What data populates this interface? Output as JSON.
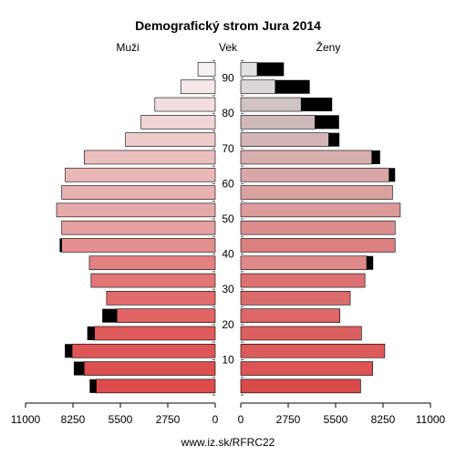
{
  "chart_data": {
    "type": "bar",
    "title": "Demografický strom Jura 2014",
    "left_label": "Muži",
    "center_label": "Vek",
    "right_label": "Ženy",
    "source": "www.iz.sk/RFRC22",
    "age_groups": [
      "0-4",
      "5-9",
      "10-14",
      "15-19",
      "20-24",
      "25-29",
      "30-34",
      "35-39",
      "40-44",
      "45-49",
      "50-54",
      "55-59",
      "60-64",
      "65-69",
      "70-74",
      "75-79",
      "80-84",
      "85-89",
      "90+"
    ],
    "age_tick_labels": [
      "10",
      "20",
      "30",
      "40",
      "50",
      "60",
      "70",
      "80",
      "90"
    ],
    "x_tick_labels": [
      "11000",
      "8250",
      "5500",
      "2750",
      "0",
      "2750",
      "5500",
      "8250",
      "11000"
    ],
    "xlim": [
      0,
      11000
    ],
    "series": [
      {
        "name": "Muži",
        "side": "left",
        "values": [
          6900,
          7600,
          8300,
          7000,
          5700,
          6300,
          7200,
          7300,
          8900,
          8900,
          9200,
          8900,
          8700,
          7600,
          5200,
          4300,
          3500,
          2000,
          1000
        ],
        "excess": [
          380,
          600,
          420,
          420,
          850,
          0,
          0,
          0,
          120,
          0,
          0,
          0,
          0,
          0,
          0,
          0,
          0,
          0,
          0
        ]
      },
      {
        "name": "Ženy",
        "side": "right",
        "values": [
          6950,
          7650,
          8350,
          7000,
          5750,
          6350,
          7200,
          7300,
          8950,
          8950,
          9250,
          8800,
          8600,
          7600,
          5100,
          4300,
          3500,
          2000,
          950
        ],
        "excess": [
          0,
          0,
          0,
          0,
          0,
          0,
          0,
          380,
          0,
          0,
          0,
          0,
          350,
          480,
          620,
          1400,
          1800,
          2000,
          1550
        ]
      }
    ],
    "colors": {
      "male": [
        "#dd4c4c",
        "#dd5050",
        "#de5555",
        "#df5a5a",
        "#e06464",
        "#e16c6c",
        "#e27575",
        "#e48181",
        "#e49090",
        "#e5a0a0",
        "#e7aaaa",
        "#e9b0b0",
        "#ebb8b8",
        "#ecbfbf",
        "#eecccc",
        "#f0d5d5",
        "#f2dede",
        "#f5e8e8",
        "#f7f0f0"
      ],
      "female": [
        "#d94a4a",
        "#dc5454",
        "#dc5a5a",
        "#dd6060",
        "#dd6666",
        "#db6c6c",
        "#dd7070",
        "#e08a8a",
        "#db7f7f",
        "#dc8e8e",
        "#dc9a9a",
        "#dba1a1",
        "#d8a6a6",
        "#d6aeae",
        "#d3b5b5",
        "#ceb8b8",
        "#cfc3c3",
        "#dcd7d7",
        "#e1e1e1"
      ],
      "excess": "#000000"
    }
  }
}
